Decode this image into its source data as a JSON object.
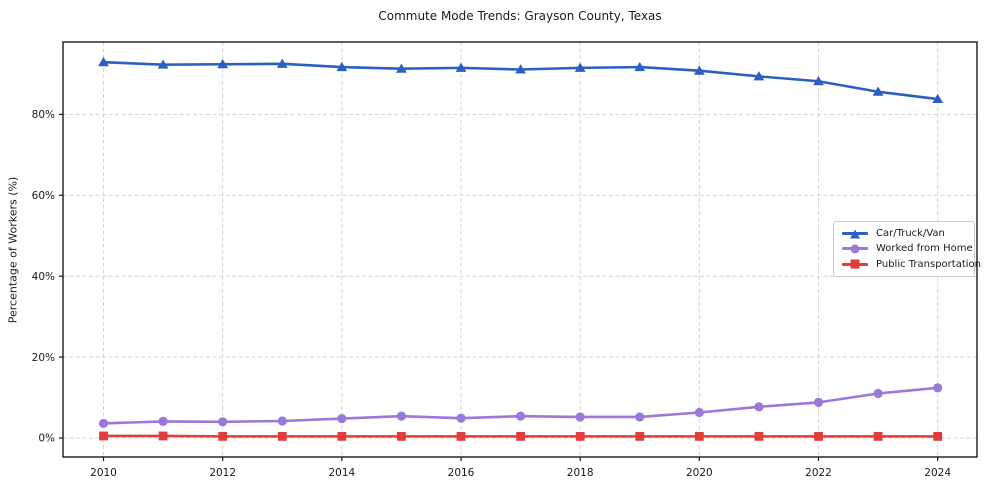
{
  "chart_data": {
    "type": "line",
    "title": "Commute Mode Trends: Grayson County, Texas",
    "xlabel": "",
    "ylabel": "Percentage of Workers (%)",
    "x": [
      2010,
      2011,
      2012,
      2013,
      2014,
      2015,
      2016,
      2017,
      2018,
      2019,
      2020,
      2021,
      2022,
      2023,
      2024
    ],
    "x_ticks": [
      2010,
      2012,
      2014,
      2016,
      2018,
      2020,
      2022,
      2024
    ],
    "x_tick_labels": [
      "2010",
      "2012",
      "2014",
      "2016",
      "2018",
      "2020",
      "2022",
      "2024"
    ],
    "y_ticks": [
      0,
      20,
      40,
      60,
      80
    ],
    "y_tick_labels": [
      "0%",
      "20%",
      "40%",
      "60%",
      "80%"
    ],
    "xlim": [
      2009.32,
      2024.66
    ],
    "ylim": [
      -4.7,
      97.9
    ],
    "grid": true,
    "grid_style": "dashed",
    "legend_position": "center right",
    "series": [
      {
        "name": "Car/Truck/Van",
        "marker": "triangle",
        "color": "#2b5fc2",
        "values": [
          92.9,
          92.3,
          92.4,
          92.5,
          91.7,
          91.3,
          91.5,
          91.1,
          91.5,
          91.7,
          90.8,
          89.4,
          88.2,
          85.6,
          83.8
        ]
      },
      {
        "name": "Worked from Home",
        "marker": "circle",
        "color": "#9b78d9",
        "values": [
          3.6,
          4.1,
          4.0,
          4.2,
          4.8,
          5.4,
          4.9,
          5.4,
          5.2,
          5.2,
          6.3,
          7.7,
          8.8,
          11.0,
          12.4
        ]
      },
      {
        "name": "Public Transportation",
        "marker": "square",
        "color": "#e23c3c",
        "values": [
          0.5,
          0.5,
          0.4,
          0.4,
          0.4,
          0.4,
          0.4,
          0.4,
          0.4,
          0.4,
          0.4,
          0.4,
          0.4,
          0.4,
          0.4
        ]
      }
    ]
  },
  "colors": {
    "background": "#ffffff",
    "grid": "#d5d5d5",
    "axis": "#1a1a1a",
    "text": "#1a1a1a",
    "legend_border": "#cccccc"
  }
}
